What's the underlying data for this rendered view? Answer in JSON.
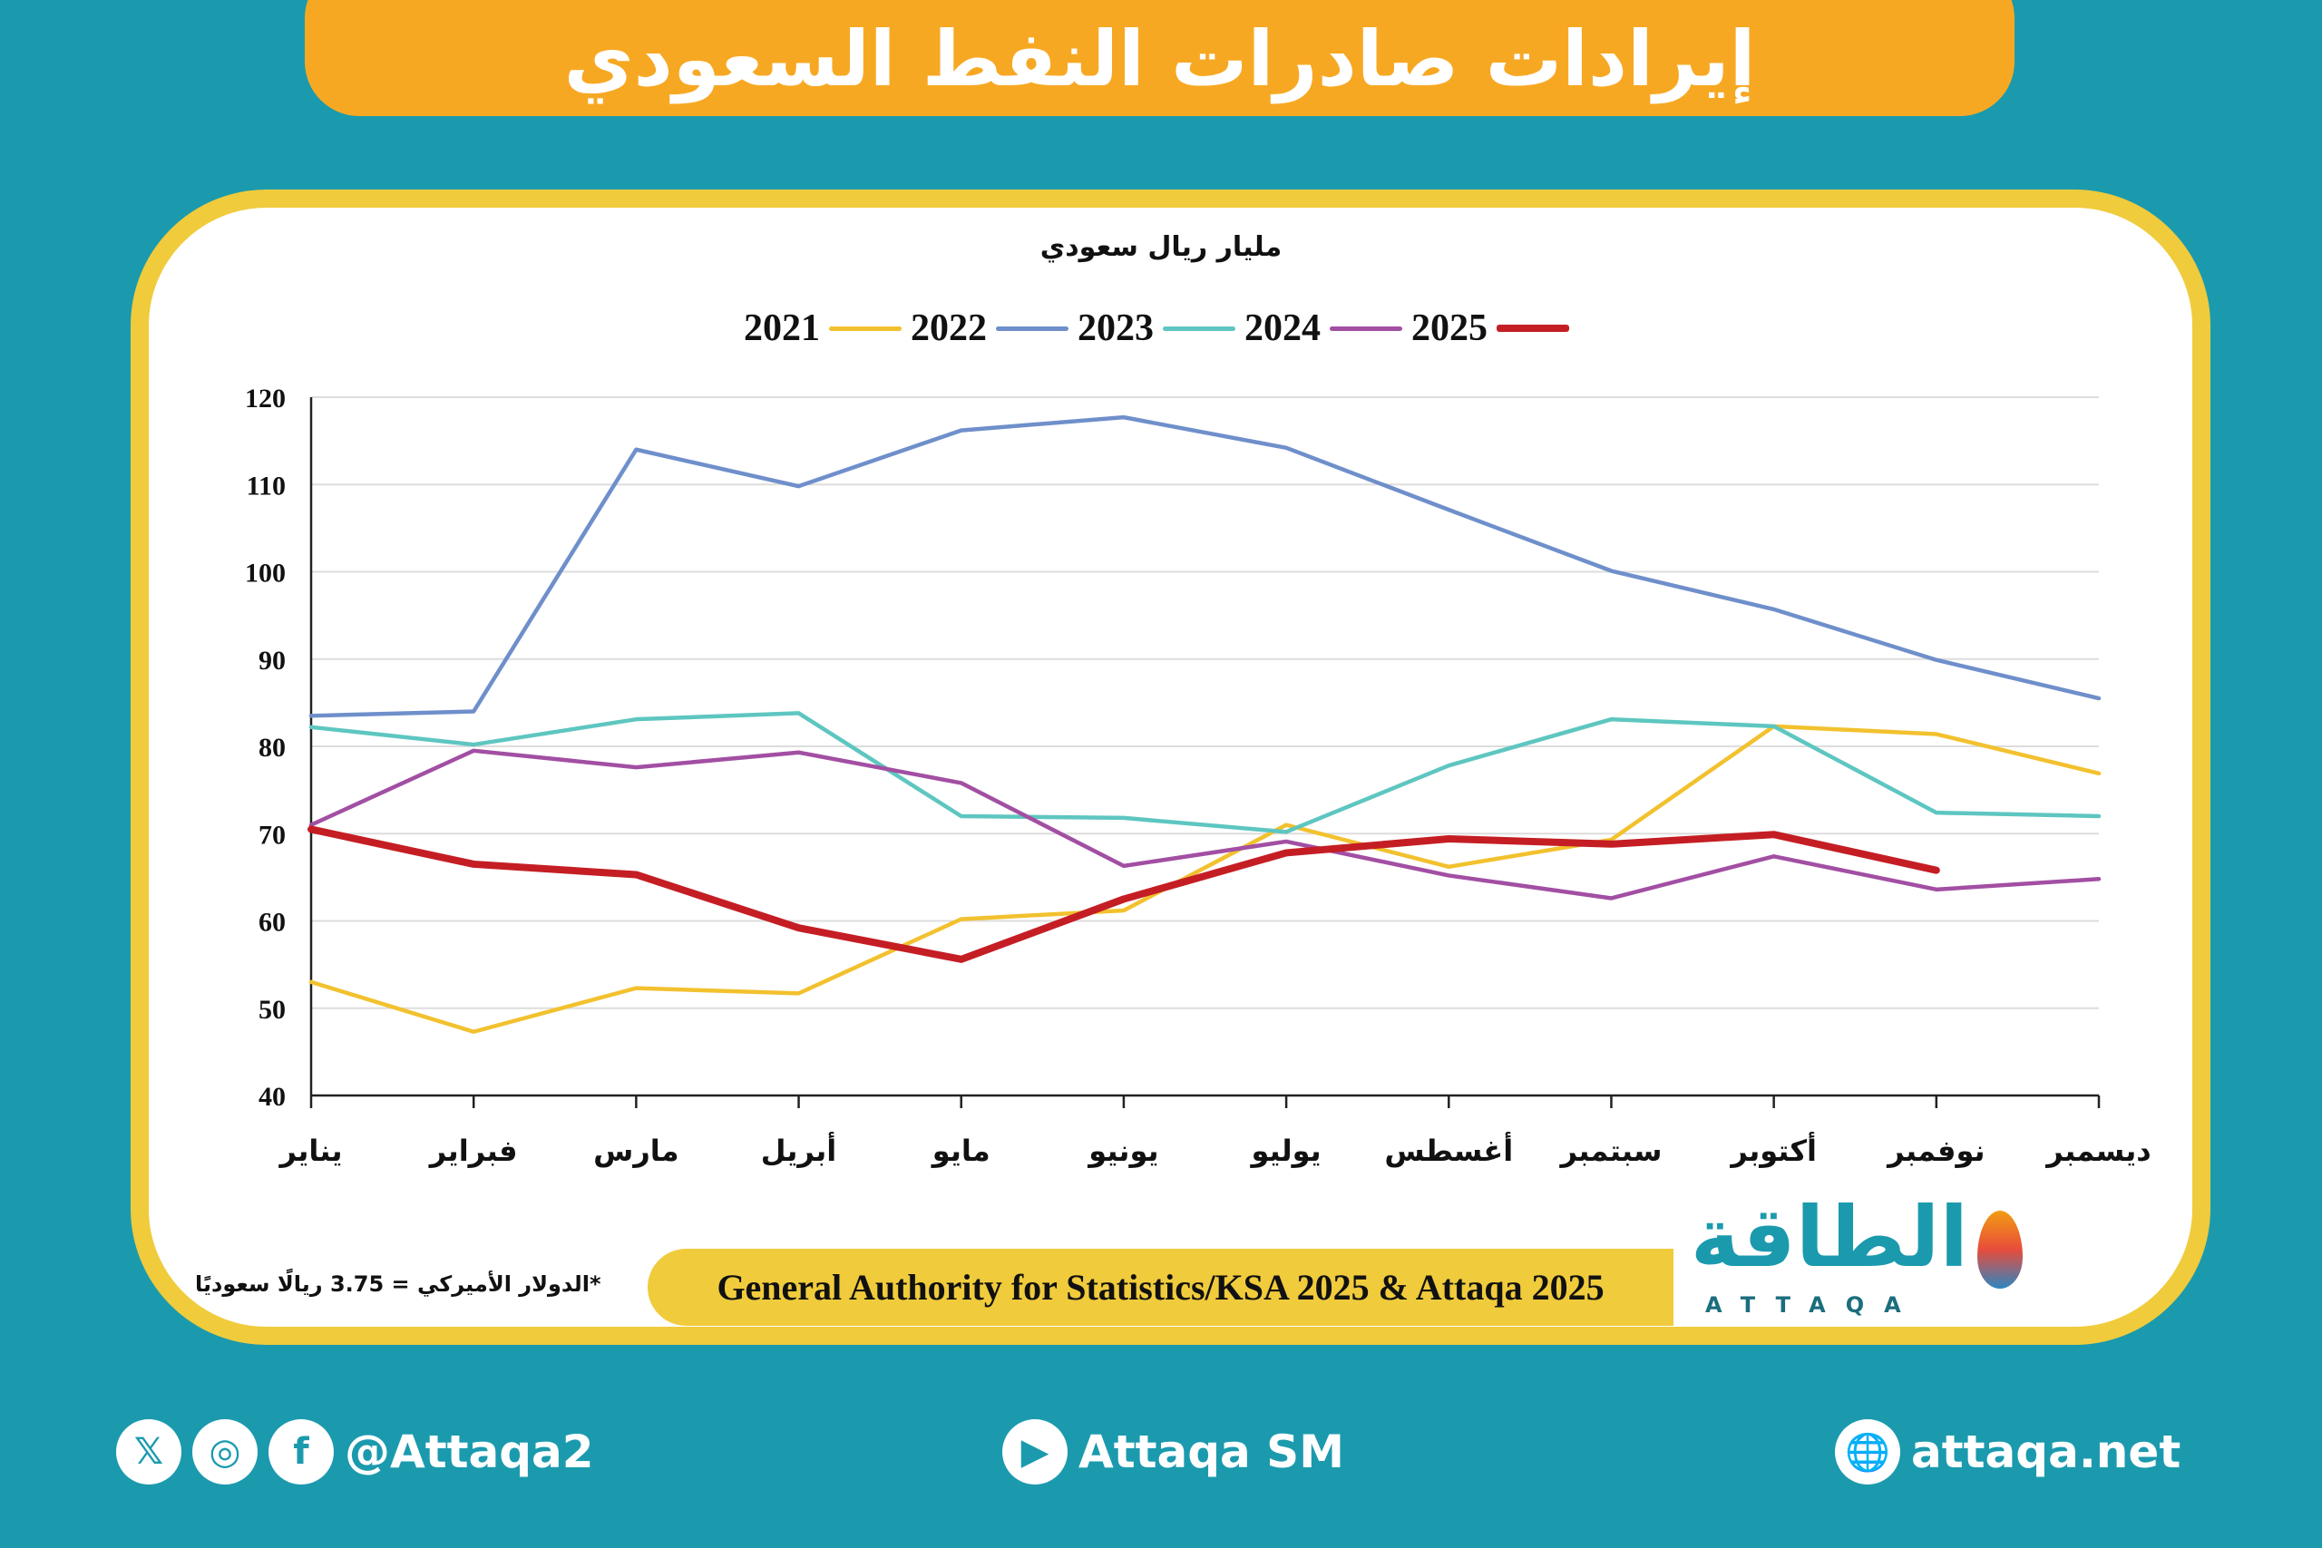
{
  "title": "إيرادات صادرات النفط السعودي",
  "unit": "مليار ريال سعودي",
  "note": "*الدولار الأميركي = 3.75 ريالًا سعوديًا",
  "source": "General Authority for Statistics/KSA 2025 & Attaqa 2025",
  "logo": {
    "arabic": "الطاقة",
    "english": "ATTAQA"
  },
  "footer": {
    "handle": "@Attaqa2",
    "youtube": "Attaqa SM",
    "website": "attaqa.net",
    "icons": [
      "x-icon",
      "instagram-icon",
      "facebook-icon",
      "youtube-icon",
      "globe-icon"
    ]
  },
  "chart_data": {
    "type": "line",
    "title": "إيرادات صادرات النفط السعودي",
    "ylabel": "مليار ريال سعودي",
    "ylim": [
      40,
      120
    ],
    "yticks": [
      40,
      50,
      60,
      70,
      80,
      90,
      100,
      110,
      120
    ],
    "grid": true,
    "legend": "top",
    "categories": [
      "يناير",
      "فبراير",
      "مارس",
      "أبريل",
      "مايو",
      "يونيو",
      "يوليو",
      "أغسطس",
      "سبتمبر",
      "أكتوبر",
      "نوفمبر",
      "ديسمبر"
    ],
    "series": [
      {
        "name": "2021",
        "color": "#f2c12e",
        "values": [
          53,
          47.3,
          52.3,
          51.7,
          60.2,
          61.2,
          71,
          66.2,
          69.3,
          82.3,
          81.4,
          76.9
        ]
      },
      {
        "name": "2022",
        "color": "#6f8fcb",
        "values": [
          83.5,
          84,
          114,
          109.8,
          116.2,
          117.7,
          114.2,
          107.1,
          100.1,
          95.7,
          89.9,
          85.5
        ]
      },
      {
        "name": "2023",
        "color": "#5ec6c0",
        "values": [
          82.2,
          80.2,
          83.1,
          83.8,
          72,
          71.8,
          70.2,
          77.8,
          83.1,
          82.3,
          72.4,
          72
        ]
      },
      {
        "name": "2024",
        "color": "#a24fa3",
        "values": [
          71,
          79.5,
          77.6,
          79.3,
          75.8,
          66.3,
          69.1,
          65.2,
          62.6,
          67.4,
          63.6,
          64.8
        ]
      },
      {
        "name": "2025",
        "color": "#c41e24",
        "values": [
          70.5,
          66.5,
          65.3,
          59.2,
          55.6,
          62.5,
          67.8,
          69.4,
          68.8,
          69.9,
          65.8,
          null
        ]
      }
    ]
  }
}
